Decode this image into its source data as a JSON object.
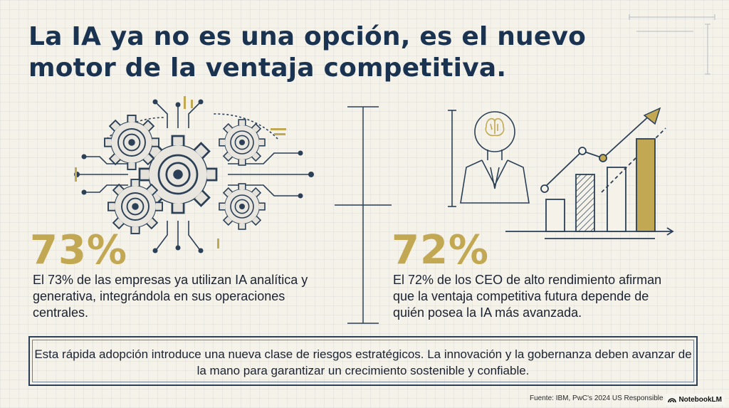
{
  "title": {
    "line1": "La IA ya no es una opción, es el nuevo",
    "line2": "motor de la ventaja competitiva."
  },
  "left": {
    "stat": "73%",
    "text": "El 73% de las empresas ya utilizan IA analítica y generativa, integrándola en sus operaciones centrales.",
    "icon": "gears-circuit-icon"
  },
  "right": {
    "stat": "72%",
    "text": "El 72% de los CEO de alto rendimiento afirman que la ventaja competitiva futura depende de quién posea la IA más avanzada.",
    "icon": "ceo-growth-chart-icon"
  },
  "callout": {
    "text": "Esta rápida adopción introduce una nueva clase de riesgos estratégicos. La innovación y la gobernanza deben avanzar de la mano para garantizar un crecimiento sostenible y confiable."
  },
  "footer": {
    "source": "Fuente: IBM, PwC's 2024 US Responsible A",
    "badge": "NotebookLM"
  },
  "colors": {
    "navy": "#1a3350",
    "gold": "#c2a852",
    "background": "#f5f2ea"
  }
}
